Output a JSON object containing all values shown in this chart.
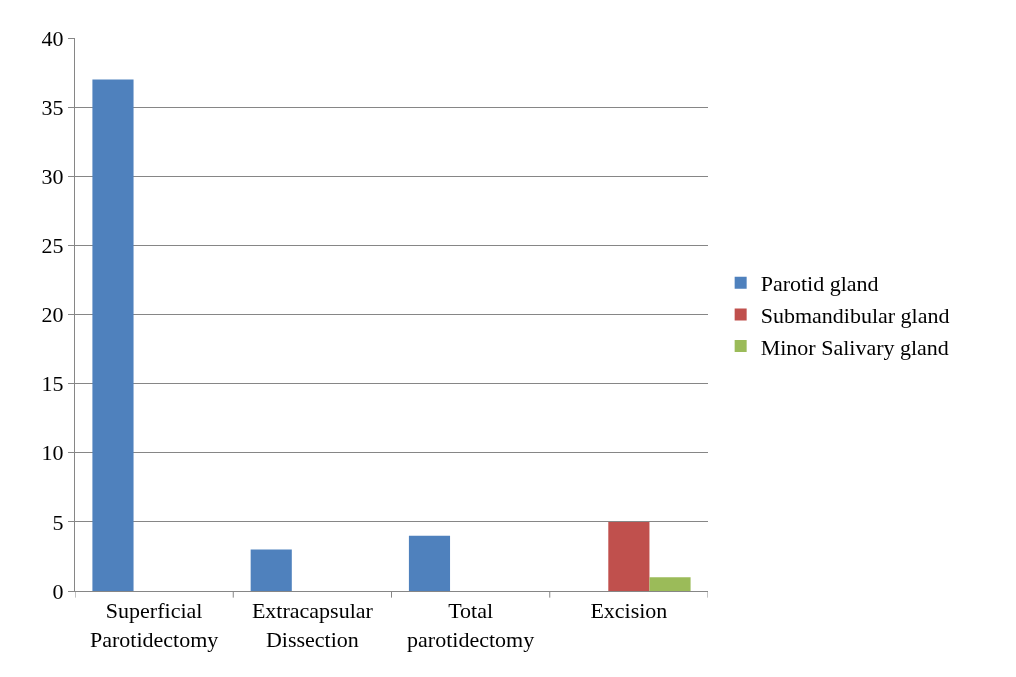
{
  "chart_data": {
    "type": "bar",
    "categories": [
      "Superficial Parotidectomy",
      "Extracapsular Dissection",
      "Total parotidectomy",
      "Excision"
    ],
    "series": [
      {
        "name": "Parotid gland",
        "color": "#4f81bd",
        "values": [
          37,
          3,
          4,
          0
        ]
      },
      {
        "name": "Submandibular gland",
        "color": "#c0504d",
        "values": [
          0,
          0,
          0,
          5
        ]
      },
      {
        "name": "Minor Salivary gland",
        "color": "#9bbb59",
        "values": [
          0,
          0,
          0,
          1
        ]
      }
    ],
    "ylim": [
      0,
      40
    ],
    "yticks": [
      0,
      5,
      10,
      15,
      20,
      25,
      30,
      35,
      40
    ],
    "grid": "y",
    "legend": "right"
  }
}
